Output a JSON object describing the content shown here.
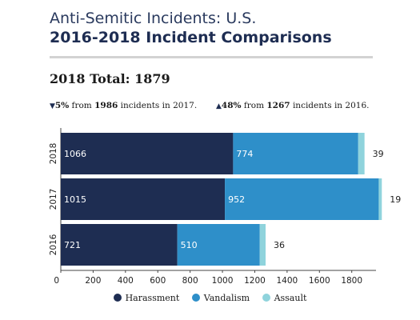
{
  "header": {
    "title_line1": "Anti-Semitic Incidents: U.S.",
    "title_line2": "2016-2018 Incident Comparisons",
    "total": "2018 Total: 1879"
  },
  "notes": [
    {
      "arrow": "▼",
      "pct": "5%",
      "from": " from ",
      "count": "1986",
      "rest": " incidents in 2017."
    },
    {
      "arrow": "▲",
      "pct": "48%",
      "from": " from ",
      "count": "1267",
      "rest": " incidents in 2016."
    }
  ],
  "legend": {
    "harassment": "Harassment",
    "vandalism": "Vandalism",
    "assault": "Assault"
  },
  "colors": {
    "harassment": "#1e2d52",
    "vandalism": "#2e8fc9",
    "assault": "#8fd3dc"
  },
  "chart_data": {
    "type": "bar",
    "orientation": "horizontal",
    "stacked": true,
    "categories": [
      "2018",
      "2017",
      "2016"
    ],
    "series": [
      {
        "name": "Harassment",
        "values": [
          1066,
          1015,
          721
        ]
      },
      {
        "name": "Vandalism",
        "values": [
          774,
          952,
          510
        ]
      },
      {
        "name": "Assault",
        "values": [
          39,
          19,
          36
        ]
      }
    ],
    "xticks": [
      0,
      200,
      400,
      600,
      800,
      1000,
      1200,
      1400,
      1600,
      1800
    ],
    "xlim": [
      0,
      1950
    ],
    "legend_position": "bottom",
    "grid": false
  }
}
